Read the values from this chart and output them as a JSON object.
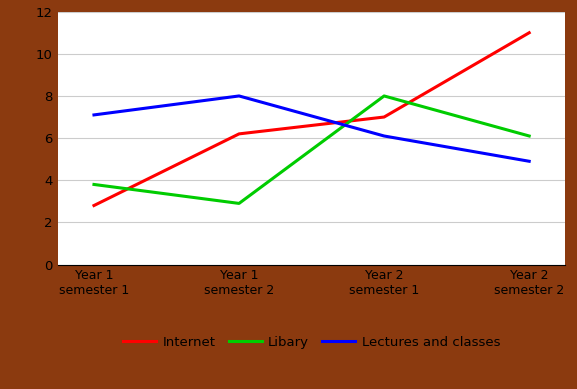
{
  "x_labels": [
    "Year 1\nsemester 1",
    "Year 1\nsemester 2",
    "Year 2\nsemester 1",
    "Year 2\nsemester 2"
  ],
  "internet": [
    2.8,
    6.2,
    7.0,
    11.0
  ],
  "library": [
    3.8,
    2.9,
    8.0,
    6.1
  ],
  "lectures": [
    7.1,
    8.0,
    6.1,
    4.9
  ],
  "internet_color": "#ff0000",
  "library_color": "#00cc00",
  "lectures_color": "#0000ff",
  "ylim": [
    0,
    12
  ],
  "yticks": [
    0,
    2,
    4,
    6,
    8,
    10,
    12
  ],
  "linewidth": 2.2,
  "legend_labels": [
    "Internet",
    "Libary",
    "Lectures and classes"
  ],
  "background_color": "#ffffff",
  "border_color": "#8B3A0F",
  "grid_color": "#cccccc"
}
